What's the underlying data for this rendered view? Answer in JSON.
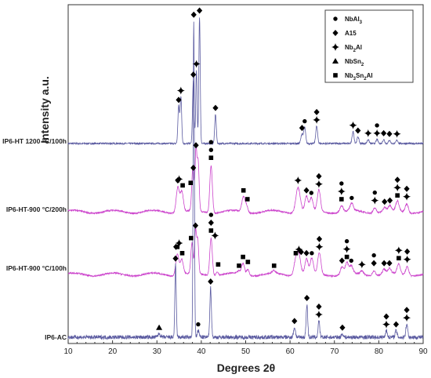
{
  "chart_data": {
    "type": "line",
    "xlabel": "Degrees 2θ",
    "ylabel": "Intensity a.u.",
    "xlim": [
      10,
      90
    ],
    "xticks": [
      10,
      20,
      30,
      40,
      50,
      60,
      70,
      80,
      90
    ],
    "yticks_shown": false,
    "grid": false,
    "legend_position": "top-right",
    "legend": [
      {
        "symbol": "circle",
        "label": "NbAl",
        "sub": "3"
      },
      {
        "symbol": "diamond",
        "label": "A15",
        "sub": ""
      },
      {
        "symbol": "cross",
        "label": "Nb",
        "sub": "2",
        "after": "Al"
      },
      {
        "symbol": "triangle",
        "label": "NbSn",
        "sub": "2"
      },
      {
        "symbol": "square",
        "label": "Nb",
        "sub": "3",
        "label2": "Sn",
        "sub2": "2",
        "after": "Al"
      }
    ],
    "series": [
      {
        "name": "IP6-HT 1200 °C/100h",
        "color": "#5a5aa0",
        "baseline": 0.0,
        "peaks": [
          {
            "x": 34.9,
            "h": 0.28,
            "w": 0.25
          },
          {
            "x": 35.4,
            "h": 0.35,
            "w": 0.25
          },
          {
            "x": 38.2,
            "h": 0.47,
            "w": 0.25
          },
          {
            "x": 38.9,
            "h": 0.55,
            "w": 0.22
          },
          {
            "x": 39.6,
            "h": 0.95,
            "w": 0.22
          },
          {
            "x": 43.2,
            "h": 0.22,
            "w": 0.25
          },
          {
            "x": 62.7,
            "h": 0.07,
            "w": 0.35
          },
          {
            "x": 63.3,
            "h": 0.12,
            "w": 0.3
          },
          {
            "x": 66.0,
            "h": 0.13,
            "w": 0.3
          },
          {
            "x": 74.2,
            "h": 0.09,
            "w": 0.3
          },
          {
            "x": 75.3,
            "h": 0.05,
            "w": 0.3
          },
          {
            "x": 77.6,
            "h": 0.03,
            "w": 0.3
          },
          {
            "x": 79.6,
            "h": 0.03,
            "w": 0.3
          },
          {
            "x": 81.1,
            "h": 0.03,
            "w": 0.3
          },
          {
            "x": 82.4,
            "h": 0.025,
            "w": 0.3
          },
          {
            "x": 84.1,
            "h": 0.025,
            "w": 0.3
          }
        ]
      },
      {
        "name": "IP6-HT-900 °C/200h",
        "color": "#cc44cc",
        "baseline": 0.0,
        "peaks": [
          {
            "x": 34.7,
            "h": 0.2,
            "w": 0.5
          },
          {
            "x": 35.6,
            "h": 0.16,
            "w": 0.5
          },
          {
            "x": 38.1,
            "h": 0.34,
            "w": 0.35
          },
          {
            "x": 38.8,
            "h": 0.48,
            "w": 0.3
          },
          {
            "x": 39.3,
            "h": 0.38,
            "w": 0.3
          },
          {
            "x": 42.2,
            "h": 0.38,
            "w": 0.4
          },
          {
            "x": 49.5,
            "h": 0.12,
            "w": 0.5
          },
          {
            "x": 50.2,
            "h": 0.05,
            "w": 0.4
          },
          {
            "x": 61.8,
            "h": 0.2,
            "w": 0.7
          },
          {
            "x": 63.7,
            "h": 0.12,
            "w": 0.5
          },
          {
            "x": 64.8,
            "h": 0.1,
            "w": 0.5
          },
          {
            "x": 66.5,
            "h": 0.17,
            "w": 0.5
          },
          {
            "x": 71.6,
            "h": 0.05,
            "w": 0.5
          },
          {
            "x": 73.9,
            "h": 0.06,
            "w": 0.5
          },
          {
            "x": 79.1,
            "h": 0.04,
            "w": 0.5
          },
          {
            "x": 81.3,
            "h": 0.03,
            "w": 0.5
          },
          {
            "x": 82.5,
            "h": 0.04,
            "w": 0.5
          },
          {
            "x": 84.2,
            "h": 0.08,
            "w": 0.5
          },
          {
            "x": 86.3,
            "h": 0.07,
            "w": 0.5
          }
        ]
      },
      {
        "name": "IP6-HT-900 °C/100h",
        "color": "#cc44cc",
        "baseline": 0.0,
        "peaks": [
          {
            "x": 34.6,
            "h": 0.17,
            "w": 0.5
          },
          {
            "x": 35.6,
            "h": 0.12,
            "w": 0.5
          },
          {
            "x": 37.9,
            "h": 0.24,
            "w": 0.35
          },
          {
            "x": 38.7,
            "h": 0.34,
            "w": 0.3
          },
          {
            "x": 39.2,
            "h": 0.26,
            "w": 0.3
          },
          {
            "x": 42.2,
            "h": 0.3,
            "w": 0.4
          },
          {
            "x": 43.6,
            "h": 0.03,
            "w": 0.4
          },
          {
            "x": 48.4,
            "h": 0.02,
            "w": 0.4
          },
          {
            "x": 49.4,
            "h": 0.09,
            "w": 0.5
          },
          {
            "x": 50.5,
            "h": 0.05,
            "w": 0.4
          },
          {
            "x": 56.4,
            "h": 0.02,
            "w": 0.5
          },
          {
            "x": 61.3,
            "h": 0.12,
            "w": 0.6
          },
          {
            "x": 62.0,
            "h": 0.15,
            "w": 0.6
          },
          {
            "x": 63.7,
            "h": 0.12,
            "w": 0.5
          },
          {
            "x": 64.9,
            "h": 0.12,
            "w": 0.5
          },
          {
            "x": 66.6,
            "h": 0.17,
            "w": 0.5
          },
          {
            "x": 71.7,
            "h": 0.06,
            "w": 0.5
          },
          {
            "x": 72.8,
            "h": 0.09,
            "w": 0.5
          },
          {
            "x": 73.8,
            "h": 0.06,
            "w": 0.5
          },
          {
            "x": 76.2,
            "h": 0.03,
            "w": 0.5
          },
          {
            "x": 78.9,
            "h": 0.04,
            "w": 0.5
          },
          {
            "x": 81.2,
            "h": 0.04,
            "w": 0.5
          },
          {
            "x": 82.4,
            "h": 0.04,
            "w": 0.5
          },
          {
            "x": 84.5,
            "h": 0.08,
            "w": 0.5
          },
          {
            "x": 86.4,
            "h": 0.07,
            "w": 0.5
          }
        ]
      },
      {
        "name": "IP6-AC",
        "color": "#5a5aa0",
        "baseline": 0.0,
        "peaks": [
          {
            "x": 30.5,
            "h": 0.01,
            "w": 0.4
          },
          {
            "x": 34.2,
            "h": 0.22,
            "w": 0.22
          },
          {
            "x": 38.3,
            "h": 0.96,
            "w": 0.2
          },
          {
            "x": 39.3,
            "h": 0.02,
            "w": 0.3
          },
          {
            "x": 42.1,
            "h": 0.15,
            "w": 0.25
          },
          {
            "x": 61.0,
            "h": 0.03,
            "w": 0.3
          },
          {
            "x": 63.8,
            "h": 0.1,
            "w": 0.25
          },
          {
            "x": 66.5,
            "h": 0.05,
            "w": 0.25
          },
          {
            "x": 71.8,
            "h": 0.01,
            "w": 0.3
          },
          {
            "x": 81.7,
            "h": 0.02,
            "w": 0.3
          },
          {
            "x": 83.9,
            "h": 0.02,
            "w": 0.3
          },
          {
            "x": 86.3,
            "h": 0.04,
            "w": 0.3
          }
        ]
      }
    ],
    "markers": [
      [
        {
          "x": 34.9,
          "h": 0.28,
          "s": [
            "diamond"
          ]
        },
        {
          "x": 35.4,
          "h": 0.35,
          "s": [
            "cross"
          ]
        },
        {
          "x": 38.2,
          "h": 0.47,
          "s": [
            "diamond"
          ]
        },
        {
          "x": 38.9,
          "h": 0.55,
          "s": [
            "cross"
          ]
        },
        {
          "x": 39.6,
          "h": 0.95,
          "s": [
            "diamond"
          ]
        },
        {
          "x": 43.2,
          "h": 0.22,
          "s": [
            "diamond"
          ]
        },
        {
          "x": 62.7,
          "h": 0.07,
          "s": [
            "diamond"
          ]
        },
        {
          "x": 63.3,
          "h": 0.12,
          "s": [
            "circle"
          ]
        },
        {
          "x": 66.0,
          "h": 0.13,
          "s": [
            "diamond",
            "cross"
          ]
        },
        {
          "x": 74.2,
          "h": 0.09,
          "s": [
            "cross"
          ]
        },
        {
          "x": 75.3,
          "h": 0.05,
          "s": [
            "diamond"
          ]
        },
        {
          "x": 77.6,
          "h": 0.03,
          "s": [
            "cross"
          ]
        },
        {
          "x": 79.6,
          "h": 0.03,
          "s": [
            "circle",
            "cross"
          ]
        },
        {
          "x": 81.1,
          "h": 0.03,
          "s": [
            "diamond"
          ]
        },
        {
          "x": 82.4,
          "h": 0.025,
          "s": [
            "diamond"
          ]
        },
        {
          "x": 84.1,
          "h": 0.025,
          "s": [
            "cross"
          ]
        }
      ],
      [
        {
          "x": 34.7,
          "h": 0.2,
          "s": [
            "diamond"
          ]
        },
        {
          "x": 35.0,
          "h": 0.21,
          "s": [
            "cross"
          ]
        },
        {
          "x": 35.8,
          "h": 0.16,
          "s": [
            "square"
          ]
        },
        {
          "x": 37.6,
          "h": 0.18,
          "s": [
            "square"
          ]
        },
        {
          "x": 38.2,
          "h": 0.3,
          "s": [
            "diamond"
          ]
        },
        {
          "x": 38.8,
          "h": 0.48,
          "s": [
            "diamond"
          ]
        },
        {
          "x": 42.2,
          "h": 0.38,
          "s": [
            "circle",
            "circle",
            "square"
          ]
        },
        {
          "x": 49.5,
          "h": 0.12,
          "s": [
            "square"
          ]
        },
        {
          "x": 50.4,
          "h": 0.05,
          "s": [
            "square"
          ]
        },
        {
          "x": 61.8,
          "h": 0.2,
          "s": [
            "cross"
          ]
        },
        {
          "x": 63.7,
          "h": 0.12,
          "s": [
            "diamond"
          ]
        },
        {
          "x": 64.8,
          "h": 0.1,
          "s": [
            "circle"
          ]
        },
        {
          "x": 66.5,
          "h": 0.17,
          "s": [
            "diamond",
            "cross"
          ]
        },
        {
          "x": 71.6,
          "h": 0.05,
          "s": [
            "circle",
            "cross",
            "square"
          ]
        },
        {
          "x": 73.9,
          "h": 0.06,
          "s": [
            "circle"
          ]
        },
        {
          "x": 79.1,
          "h": 0.04,
          "s": [
            "circle",
            "cross"
          ]
        },
        {
          "x": 81.3,
          "h": 0.03,
          "s": [
            "diamond"
          ]
        },
        {
          "x": 82.5,
          "h": 0.04,
          "s": [
            "diamond"
          ]
        },
        {
          "x": 84.2,
          "h": 0.08,
          "s": [
            "diamond",
            "cross",
            "square"
          ]
        },
        {
          "x": 86.3,
          "h": 0.07,
          "s": [
            "diamond",
            "cross"
          ]
        }
      ],
      [
        {
          "x": 34.3,
          "h": 0.17,
          "s": [
            "diamond"
          ]
        },
        {
          "x": 34.6,
          "h": 0.17,
          "s": [
            "square"
          ]
        },
        {
          "x": 35.0,
          "h": 0.2,
          "s": [
            "cross"
          ]
        },
        {
          "x": 35.7,
          "h": 0.12,
          "s": [
            "square"
          ]
        },
        {
          "x": 37.7,
          "h": 0.24,
          "s": [
            "square"
          ]
        },
        {
          "x": 38.7,
          "h": 0.34,
          "s": [
            "diamond"
          ]
        },
        {
          "x": 42.2,
          "h": 0.3,
          "s": [
            "circle",
            "diamond",
            "square"
          ]
        },
        {
          "x": 43.1,
          "h": 0.26,
          "s": [
            "cross"
          ]
        },
        {
          "x": 43.8,
          "h": 0.03,
          "s": [
            "square"
          ]
        },
        {
          "x": 48.5,
          "h": 0.02,
          "s": [
            "square"
          ]
        },
        {
          "x": 49.4,
          "h": 0.09,
          "s": [
            "square"
          ]
        },
        {
          "x": 50.5,
          "h": 0.05,
          "s": [
            "square"
          ]
        },
        {
          "x": 56.4,
          "h": 0.02,
          "s": [
            "square"
          ]
        },
        {
          "x": 61.3,
          "h": 0.12,
          "s": [
            "square"
          ]
        },
        {
          "x": 62.0,
          "h": 0.15,
          "s": [
            "cross"
          ]
        },
        {
          "x": 62.5,
          "h": 0.13,
          "s": [
            "diamond"
          ]
        },
        {
          "x": 63.7,
          "h": 0.12,
          "s": [
            "diamond"
          ]
        },
        {
          "x": 64.9,
          "h": 0.12,
          "s": [
            "circle"
          ]
        },
        {
          "x": 66.6,
          "h": 0.17,
          "s": [
            "diamond",
            "cross"
          ]
        },
        {
          "x": 71.7,
          "h": 0.06,
          "s": [
            "diamond"
          ]
        },
        {
          "x": 72.8,
          "h": 0.09,
          "s": [
            "circle",
            "cross",
            "square"
          ]
        },
        {
          "x": 73.8,
          "h": 0.06,
          "s": [
            "circle"
          ]
        },
        {
          "x": 76.2,
          "h": 0.03,
          "s": [
            "cross"
          ]
        },
        {
          "x": 78.9,
          "h": 0.04,
          "s": [
            "circle",
            "diamond"
          ]
        },
        {
          "x": 81.2,
          "h": 0.04,
          "s": [
            "diamond"
          ]
        },
        {
          "x": 82.4,
          "h": 0.04,
          "s": [
            "diamond"
          ]
        },
        {
          "x": 84.5,
          "h": 0.08,
          "s": [
            "cross",
            "square"
          ]
        },
        {
          "x": 86.4,
          "h": 0.07,
          "s": [
            "diamond",
            "cross"
          ]
        }
      ],
      [
        {
          "x": 30.5,
          "h": 0.01,
          "s": [
            "triangle"
          ]
        },
        {
          "x": 34.2,
          "h": 0.22,
          "s": [
            "diamond"
          ]
        },
        {
          "x": 38.3,
          "h": 0.96,
          "s": [
            "diamond"
          ]
        },
        {
          "x": 39.3,
          "h": 0.02,
          "s": [
            "circle"
          ]
        },
        {
          "x": 42.1,
          "h": 0.15,
          "s": [
            "diamond"
          ]
        },
        {
          "x": 61.0,
          "h": 0.03,
          "s": [
            "diamond"
          ]
        },
        {
          "x": 63.8,
          "h": 0.1,
          "s": [
            "diamond"
          ]
        },
        {
          "x": 66.5,
          "h": 0.05,
          "s": [
            "diamond",
            "cross"
          ]
        },
        {
          "x": 71.8,
          "h": 0.01,
          "s": [
            "diamond"
          ]
        },
        {
          "x": 81.7,
          "h": 0.02,
          "s": [
            "diamond",
            "cross"
          ]
        },
        {
          "x": 83.9,
          "h": 0.02,
          "s": [
            "diamond"
          ]
        },
        {
          "x": 86.3,
          "h": 0.04,
          "s": [
            "diamond",
            "cross"
          ]
        }
      ]
    ]
  }
}
